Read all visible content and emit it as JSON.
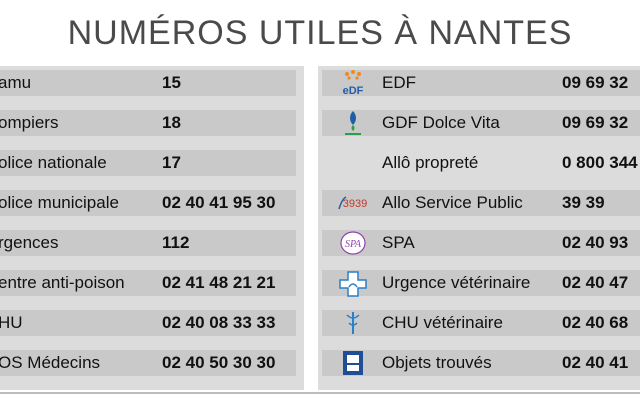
{
  "title": "NUMÉROS UTILES À NANTES",
  "left": [
    {
      "label": "amu",
      "number": "15"
    },
    {
      "label": "ompiers",
      "number": "18"
    },
    {
      "label": "olice nationale",
      "number": "17"
    },
    {
      "label": "olice municipale",
      "number": "02 40 41 95 30"
    },
    {
      "label": "rgences",
      "number": "112"
    },
    {
      "label": "entre anti-poison",
      "number": "02 41 48 21 21"
    },
    {
      "label": "HU",
      "number": "02 40 08 33 33"
    },
    {
      "label": "OS Médecins",
      "number": "02 40 50 30 30"
    }
  ],
  "right": [
    {
      "label": "EDF",
      "number": "09 69 32",
      "icon": "edf-logo-icon",
      "icon_text": "eDF"
    },
    {
      "label": "GDF Dolce Vita",
      "number": "09 69 32",
      "icon": "gdf-logo-icon",
      "icon_text": ""
    },
    {
      "label": "Allô propreté",
      "number": "0 800 344",
      "icon": "",
      "icon_text": ""
    },
    {
      "label": "Allo Service Public",
      "number": "39 39",
      "icon": "3939-logo-icon",
      "icon_text": "3939"
    },
    {
      "label": "SPA",
      "number": "02 40 93",
      "icon": "spa-logo-icon",
      "icon_text": "SPA"
    },
    {
      "label": "Urgence vétérinaire",
      "number": "02 40 47",
      "icon": "veterinary-cross-icon",
      "icon_text": ""
    },
    {
      "label": "CHU vétérinaire",
      "number": "02 40 68",
      "icon": "chu-veterinaire-icon",
      "icon_text": ""
    },
    {
      "label": "Objets trouvés",
      "number": "02 40 41",
      "icon": "lost-objects-icon",
      "icon_text": ""
    }
  ],
  "colors": {
    "row_bg": "#c9c9c9",
    "panel_bg": "#dcdcdc",
    "title": "#4a4a4a",
    "edf_blue": "#1f5fa8",
    "edf_orange": "#f08a1c"
  }
}
